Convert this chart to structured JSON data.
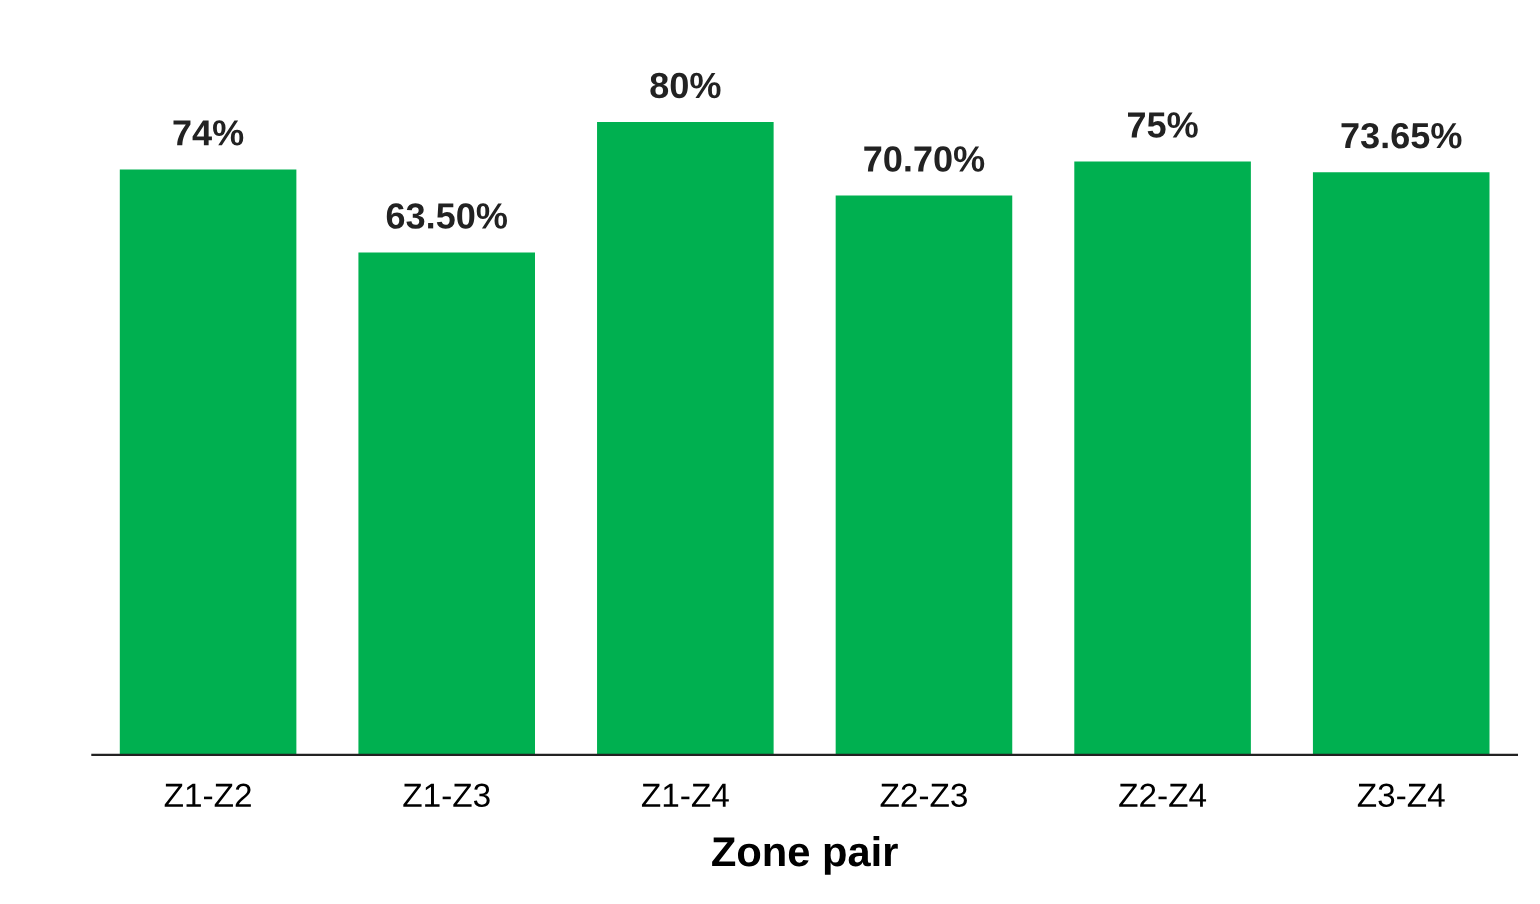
{
  "chart_data": {
    "type": "bar",
    "xlabel": "Zone pair",
    "categories": [
      "Z1-Z2",
      "Z1-Z3",
      "Z1-Z4",
      "Z2-Z3",
      "Z2-Z4",
      "Z3-Z4"
    ],
    "values": [
      74,
      63.5,
      80,
      70.7,
      75,
      73.65
    ],
    "value_labels": [
      "74%",
      "63.50%",
      "80%",
      "70.70%",
      "75%",
      "73.65%"
    ],
    "color": "#00b050",
    "tick_labels": "x",
    "grid": false,
    "legend": false
  }
}
